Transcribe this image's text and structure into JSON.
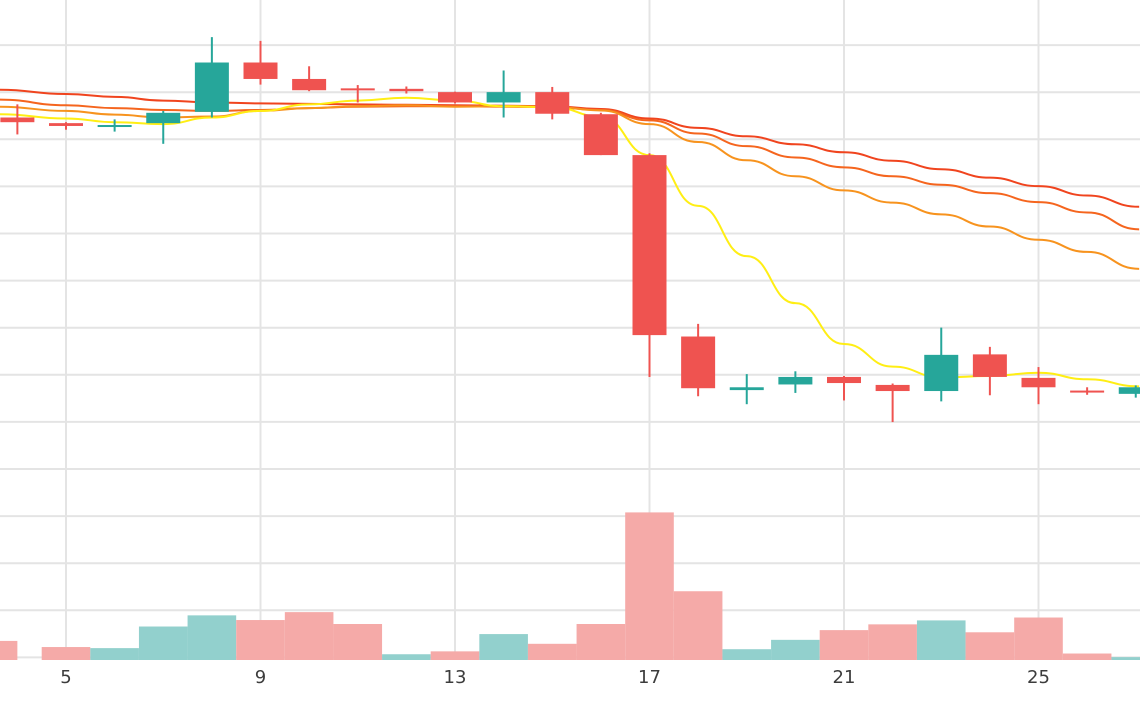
{
  "chart_data": {
    "type": "candlestick",
    "x_ticks": [
      5,
      9,
      13,
      17,
      21,
      25
    ],
    "x_range": [
      3.63,
      27.07
    ],
    "price_range": [
      0,
      100
    ],
    "volume_range": [
      0,
      100
    ],
    "grid": true,
    "colors": {
      "up": "#26a69a",
      "down": "#ef5350",
      "volume_up": "#92d0cd",
      "volume_down": "#f5aaa8",
      "grid": "#e4e4e4",
      "axis_text": "#3c3c3c"
    },
    "candles": [
      {
        "day": 4,
        "open": 75.0,
        "high": 77.8,
        "low": 71.4,
        "close": 74.0
      },
      {
        "day": 5,
        "open": 73.8,
        "high": 74.0,
        "low": 72.4,
        "close": 73.2
      },
      {
        "day": 6,
        "open": 73.1,
        "high": 74.6,
        "low": 72.0,
        "close": 73.4
      },
      {
        "day": 7,
        "open": 73.8,
        "high": 76.4,
        "low": 69.4,
        "close": 76.0
      },
      {
        "day": 8,
        "open": 76.2,
        "high": 92.1,
        "low": 75.0,
        "close": 86.7
      },
      {
        "day": 9,
        "open": 86.7,
        "high": 91.3,
        "low": 82.0,
        "close": 83.2
      },
      {
        "day": 10,
        "open": 83.2,
        "high": 85.9,
        "low": 80.6,
        "close": 80.8
      },
      {
        "day": 11,
        "open": 81.2,
        "high": 81.9,
        "low": 78.2,
        "close": 80.8
      },
      {
        "day": 12,
        "open": 81.1,
        "high": 81.6,
        "low": 80.1,
        "close": 80.6
      },
      {
        "day": 13,
        "open": 80.4,
        "high": 80.5,
        "low": 78.0,
        "close": 78.2
      },
      {
        "day": 14,
        "open": 78.2,
        "high": 85.0,
        "low": 75.0,
        "close": 80.4
      },
      {
        "day": 15,
        "open": 80.4,
        "high": 81.5,
        "low": 74.6,
        "close": 75.8
      },
      {
        "day": 16,
        "open": 75.7,
        "high": 76.0,
        "low": 67.0,
        "close": 67.0
      },
      {
        "day": 17,
        "open": 67.0,
        "high": 67.4,
        "low": 19.8,
        "close": 28.7
      },
      {
        "day": 18,
        "open": 28.4,
        "high": 31.1,
        "low": 15.7,
        "close": 17.4
      },
      {
        "day": 19,
        "open": 17.0,
        "high": 20.4,
        "low": 14.0,
        "close": 17.6
      },
      {
        "day": 20,
        "open": 18.2,
        "high": 21.0,
        "low": 16.4,
        "close": 19.8
      },
      {
        "day": 21,
        "open": 19.8,
        "high": 20.0,
        "low": 14.8,
        "close": 18.5
      },
      {
        "day": 22,
        "open": 18.1,
        "high": 18.4,
        "low": 10.2,
        "close": 16.8
      },
      {
        "day": 23,
        "open": 16.8,
        "high": 30.3,
        "low": 14.6,
        "close": 24.5
      },
      {
        "day": 24,
        "open": 24.6,
        "high": 26.2,
        "low": 15.9,
        "close": 19.8
      },
      {
        "day": 25,
        "open": 19.6,
        "high": 21.9,
        "low": 14.0,
        "close": 17.6
      },
      {
        "day": 26,
        "open": 16.9,
        "high": 17.6,
        "low": 16.0,
        "close": 16.6
      },
      {
        "day": 27,
        "open": 16.2,
        "high": 18.0,
        "low": 15.4,
        "close": 17.6
      }
    ],
    "volume": [
      {
        "day": 3.5,
        "value": 5.3,
        "dir": "down"
      },
      {
        "day": 5,
        "value": 3.6,
        "dir": "down"
      },
      {
        "day": 6,
        "value": 3.3,
        "dir": "up"
      },
      {
        "day": 7,
        "value": 9.3,
        "dir": "up"
      },
      {
        "day": 8,
        "value": 12.4,
        "dir": "up"
      },
      {
        "day": 9,
        "value": 11.1,
        "dir": "down"
      },
      {
        "day": 10,
        "value": 13.3,
        "dir": "down"
      },
      {
        "day": 11,
        "value": 10.0,
        "dir": "down"
      },
      {
        "day": 12,
        "value": 1.6,
        "dir": "up"
      },
      {
        "day": 13,
        "value": 2.4,
        "dir": "down"
      },
      {
        "day": 14,
        "value": 7.2,
        "dir": "up"
      },
      {
        "day": 15,
        "value": 4.5,
        "dir": "down"
      },
      {
        "day": 16,
        "value": 10.0,
        "dir": "down"
      },
      {
        "day": 17,
        "value": 41.0,
        "dir": "down"
      },
      {
        "day": 18,
        "value": 19.1,
        "dir": "down"
      },
      {
        "day": 19,
        "value": 3.0,
        "dir": "up"
      },
      {
        "day": 20,
        "value": 5.6,
        "dir": "up"
      },
      {
        "day": 21,
        "value": 8.3,
        "dir": "down"
      },
      {
        "day": 22,
        "value": 9.9,
        "dir": "down"
      },
      {
        "day": 23,
        "value": 11.0,
        "dir": "up"
      },
      {
        "day": 24,
        "value": 7.7,
        "dir": "down"
      },
      {
        "day": 25,
        "value": 11.8,
        "dir": "down"
      },
      {
        "day": 26,
        "value": 1.8,
        "dir": "down"
      },
      {
        "day": 27,
        "value": 0.8,
        "dir": "up"
      }
    ],
    "moving_averages": [
      {
        "color": "#f0441e",
        "points": [
          [
            3.63,
            80.9
          ],
          [
            5,
            80.0
          ],
          [
            6,
            79.4
          ],
          [
            7,
            78.6
          ],
          [
            8,
            78.2
          ],
          [
            9,
            78.0
          ],
          [
            10,
            77.9
          ],
          [
            11,
            77.8
          ],
          [
            12,
            77.7
          ],
          [
            13,
            77.6
          ],
          [
            14,
            77.5
          ],
          [
            15,
            77.4
          ],
          [
            16,
            76.8
          ],
          [
            17,
            74.8
          ],
          [
            18,
            72.8
          ],
          [
            19,
            71.0
          ],
          [
            20,
            69.3
          ],
          [
            21,
            67.6
          ],
          [
            22,
            65.8
          ],
          [
            23,
            64.0
          ],
          [
            24,
            62.2
          ],
          [
            25,
            60.4
          ],
          [
            26,
            58.4
          ],
          [
            27.07,
            56.0
          ]
        ]
      },
      {
        "color": "#f5651e",
        "points": [
          [
            3.63,
            78.8
          ],
          [
            5,
            77.6
          ],
          [
            6,
            77.0
          ],
          [
            7,
            76.6
          ],
          [
            8,
            76.4
          ],
          [
            9,
            76.6
          ],
          [
            10,
            77.0
          ],
          [
            11,
            77.3
          ],
          [
            12,
            77.4
          ],
          [
            13,
            77.4
          ],
          [
            14,
            77.3
          ],
          [
            15,
            77.2
          ],
          [
            16,
            76.6
          ],
          [
            17,
            74.4
          ],
          [
            18,
            71.6
          ],
          [
            19,
            68.9
          ],
          [
            20,
            66.5
          ],
          [
            21,
            64.4
          ],
          [
            22,
            62.5
          ],
          [
            23,
            60.7
          ],
          [
            24,
            58.9
          ],
          [
            25,
            57.0
          ],
          [
            26,
            54.8
          ],
          [
            27.07,
            51.2
          ]
        ]
      },
      {
        "color": "#f7931e",
        "points": [
          [
            3.63,
            77.3
          ],
          [
            5,
            76.4
          ],
          [
            6,
            75.6
          ],
          [
            7,
            75.0
          ],
          [
            8,
            75.2
          ],
          [
            9,
            76.4
          ],
          [
            10,
            77.0
          ],
          [
            11,
            77.4
          ],
          [
            12,
            77.6
          ],
          [
            13,
            77.3
          ],
          [
            14,
            77.4
          ],
          [
            15,
            77.3
          ],
          [
            16,
            76.5
          ],
          [
            17,
            73.6
          ],
          [
            18,
            69.8
          ],
          [
            19,
            65.9
          ],
          [
            20,
            62.5
          ],
          [
            21,
            59.5
          ],
          [
            22,
            56.9
          ],
          [
            23,
            54.4
          ],
          [
            24,
            51.8
          ],
          [
            25,
            49.0
          ],
          [
            26,
            46.4
          ],
          [
            27.07,
            42.8
          ]
        ]
      },
      {
        "color": "#ffee14",
        "points": [
          [
            3.63,
            75.7
          ],
          [
            5,
            74.8
          ],
          [
            6,
            74.0
          ],
          [
            7,
            73.6
          ],
          [
            8,
            75.0
          ],
          [
            9,
            76.4
          ],
          [
            10,
            77.8
          ],
          [
            11,
            78.6
          ],
          [
            12,
            79.2
          ],
          [
            13,
            78.6
          ],
          [
            14,
            77.4
          ],
          [
            15,
            77.2
          ],
          [
            16,
            75.2
          ],
          [
            17,
            67.0
          ],
          [
            18,
            56.2
          ],
          [
            19,
            45.5
          ],
          [
            20,
            35.5
          ],
          [
            21,
            26.8
          ],
          [
            22,
            22.0
          ],
          [
            23,
            19.7
          ],
          [
            24,
            20.0
          ],
          [
            25,
            20.7
          ],
          [
            26,
            19.3
          ],
          [
            27.07,
            17.8
          ]
        ]
      }
    ]
  }
}
